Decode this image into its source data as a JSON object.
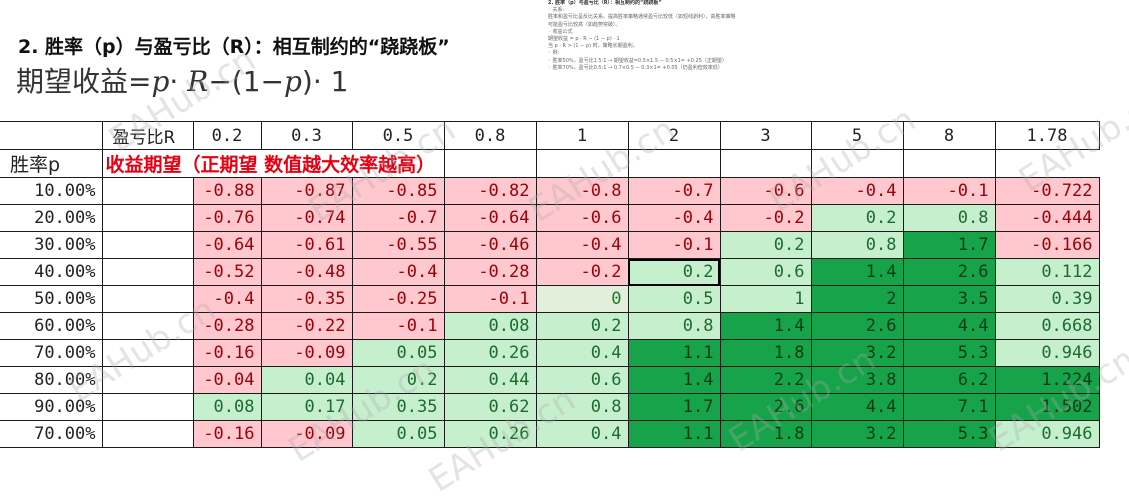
{
  "heading": "2. 胜率（p）与盈亏比（R）：相互制约的“跷跷板”",
  "formula": {
    "prefix": "期望收益=",
    "p1": "p",
    "dot1": "·",
    "r": "R",
    "minus": "−(1−",
    "p2": "p",
    "close": ")",
    "dot2": "·",
    "one": "1"
  },
  "note": {
    "title": "2. 胜率（p）与盈亏比（R）：相互制约的“跷跷板”",
    "lines": [
      "◦ 关系:",
      "胜率和盈亏比呈反比关系。提高胜率策略通常盈亏比较低（如短线剥利），高胜率策略",
      "可能盈亏比较高（如趋势突破）。",
      "◦ 收益公式",
      "期望收益 = p · R − (1 − p) · 1",
      "当 p · R > (1 − p) 时，策略长期盈利。",
      "◦ 例:",
      "◦ 胜率50%，盈亏比1.5:1 → 期望收益=0.5×1.5 − 0.5×1= +0.25（正期望）",
      "◦ 胜率70%，盈亏比0.5:1 → 0.7×0.5 − 0.3×1= +0.05（仍盈利但效率低）"
    ]
  },
  "table": {
    "r_header_label": "盈亏比R",
    "r_values": [
      "0.2",
      "0.3",
      "0.5",
      "0.8",
      "1",
      "2",
      "3",
      "5",
      "8",
      "1.78"
    ],
    "p_header_label": "胜率p",
    "banner": "收益期望（正期望 数值越大效率越高）",
    "rows": [
      {
        "p": "10.00%",
        "values": [
          "-0.88",
          "-0.87",
          "-0.85",
          "-0.82",
          "-0.8",
          "-0.7",
          "-0.6",
          "-0.4",
          "-0.1",
          "-0.722"
        ]
      },
      {
        "p": "20.00%",
        "values": [
          "-0.76",
          "-0.74",
          "-0.7",
          "-0.64",
          "-0.6",
          "-0.4",
          "-0.2",
          "0.2",
          "0.8",
          "-0.444"
        ]
      },
      {
        "p": "30.00%",
        "values": [
          "-0.64",
          "-0.61",
          "-0.55",
          "-0.46",
          "-0.4",
          "-0.1",
          "0.2",
          "0.8",
          "1.7",
          "-0.166"
        ]
      },
      {
        "p": "40.00%",
        "values": [
          "-0.52",
          "-0.48",
          "-0.4",
          "-0.28",
          "-0.2",
          "0.2",
          "0.6",
          "1.4",
          "2.6",
          "0.112"
        ]
      },
      {
        "p": "50.00%",
        "values": [
          "-0.4",
          "-0.35",
          "-0.25",
          "-0.1",
          "0",
          "0.5",
          "1",
          "2",
          "3.5",
          "0.39"
        ]
      },
      {
        "p": "60.00%",
        "values": [
          "-0.28",
          "-0.22",
          "-0.1",
          "0.08",
          "0.2",
          "0.8",
          "1.4",
          "2.6",
          "4.4",
          "0.668"
        ]
      },
      {
        "p": "70.00%",
        "values": [
          "-0.16",
          "-0.09",
          "0.05",
          "0.26",
          "0.4",
          "1.1",
          "1.8",
          "3.2",
          "5.3",
          "0.946"
        ]
      },
      {
        "p": "80.00%",
        "values": [
          "-0.04",
          "0.04",
          "0.2",
          "0.44",
          "0.6",
          "1.4",
          "2.2",
          "3.8",
          "6.2",
          "1.224"
        ]
      },
      {
        "p": "90.00%",
        "values": [
          "0.08",
          "0.17",
          "0.35",
          "0.62",
          "0.8",
          "1.7",
          "2.6",
          "4.4",
          "7.1",
          "1.502"
        ]
      },
      {
        "p": "70.00%",
        "values": [
          "-0.16",
          "-0.09",
          "0.05",
          "0.26",
          "0.4",
          "1.1",
          "1.8",
          "3.2",
          "5.3",
          "0.946"
        ]
      }
    ],
    "colors": {
      "negative": "#ffc7ce",
      "low_positive": "#c6efce",
      "high_positive": "#16a34a",
      "banner_text": "#e60012"
    }
  },
  "watermark": "EAHub.cn"
}
